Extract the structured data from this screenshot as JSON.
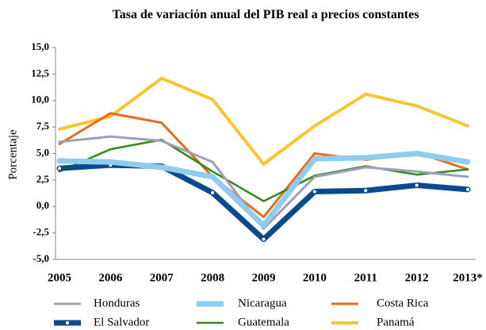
{
  "chart_data": {
    "type": "line",
    "title": "Tasa de variación anual del  PIB real a precios constantes",
    "y_label": "Porcentaje",
    "categories": [
      "2005",
      "2006",
      "2007",
      "2008",
      "2009",
      "2010",
      "2011",
      "2012",
      "2013*"
    ],
    "ylim": [
      -5,
      15
    ],
    "yticks": [
      {
        "value": -5,
        "label": "-5,0"
      },
      {
        "value": -2.5,
        "label": "-2,5"
      },
      {
        "value": 0,
        "label": "0,0"
      },
      {
        "value": 2.5,
        "label": "2,5"
      },
      {
        "value": 5,
        "label": "5,0"
      },
      {
        "value": 7.5,
        "label": "7,5"
      },
      {
        "value": 10,
        "label": "10,0"
      },
      {
        "value": 12.5,
        "label": "12,5"
      },
      {
        "value": 15,
        "label": "15,0"
      }
    ],
    "grid": false,
    "series": [
      {
        "name": "Honduras",
        "color": "#a29db8",
        "values": [
          6.1,
          6.6,
          6.2,
          4.2,
          -2.1,
          2.8,
          3.7,
          3.3,
          2.8
        ]
      },
      {
        "name": "Nicaragua",
        "color": "#8fcdf0",
        "values": [
          4.3,
          4.2,
          3.7,
          2.8,
          -1.8,
          4.5,
          4.6,
          5.0,
          4.2
        ]
      },
      {
        "name": "Costa Rica",
        "color": "#e46c1c",
        "values": [
          5.9,
          8.8,
          7.9,
          2.8,
          -1.0,
          5.0,
          4.4,
          5.1,
          3.5
        ]
      },
      {
        "name": "El Salvador",
        "color": "#0c4a8c",
        "values": [
          3.6,
          3.9,
          3.8,
          1.3,
          -3.1,
          1.4,
          1.5,
          2.0,
          1.6
        ]
      },
      {
        "name": "Guatemala",
        "color": "#2e8a1e",
        "values": [
          3.3,
          5.4,
          6.3,
          3.3,
          0.5,
          2.9,
          3.8,
          3.0,
          3.5
        ]
      },
      {
        "name": "Panamá",
        "color": "#f7c531",
        "values": [
          7.3,
          8.5,
          12.1,
          10.1,
          4.0,
          7.6,
          10.6,
          9.5,
          7.6
        ]
      }
    ]
  }
}
